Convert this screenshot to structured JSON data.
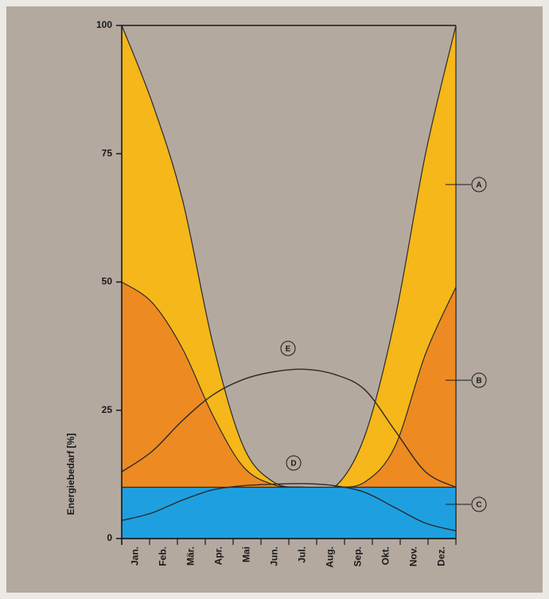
{
  "chart_data": {
    "type": "area",
    "y_label": "Energiebedarf [%]",
    "categories": [
      "Jan.",
      "Feb.",
      "Mär.",
      "Apr.",
      "Mai",
      "Jun.",
      "Jul.",
      "Aug.",
      "Sep.",
      "Okt.",
      "Nov.",
      "Dez."
    ],
    "series": [
      {
        "name": "A",
        "color": "#f5b719",
        "kind": "area",
        "values": [
          100,
          85,
          66,
          38,
          18,
          11,
          10,
          10,
          20,
          43,
          75,
          100
        ]
      },
      {
        "name": "B",
        "color": "#ee8a22",
        "kind": "area",
        "values": [
          50,
          46,
          37,
          24,
          14,
          10.5,
          10,
          10,
          11,
          18,
          36,
          49
        ]
      },
      {
        "name": "C",
        "color": "#1ea0e0",
        "kind": "area",
        "values": [
          10,
          10,
          10,
          10,
          10,
          10,
          10,
          10,
          10,
          10,
          10,
          10
        ]
      },
      {
        "name": "D",
        "color": "#2a2a2a",
        "kind": "line",
        "values": [
          3.5,
          5,
          7.5,
          9.5,
          10.3,
          10.6,
          10.7,
          10.3,
          9,
          6,
          3,
          1.5
        ]
      },
      {
        "name": "E",
        "color": "#2a2a2a",
        "kind": "line",
        "values": [
          13,
          17,
          23,
          28,
          31,
          32.5,
          33,
          32,
          29,
          21,
          13,
          10
        ]
      }
    ],
    "ylim": [
      0,
      100
    ],
    "yticks": [
      0,
      25,
      50,
      75,
      100
    ]
  }
}
